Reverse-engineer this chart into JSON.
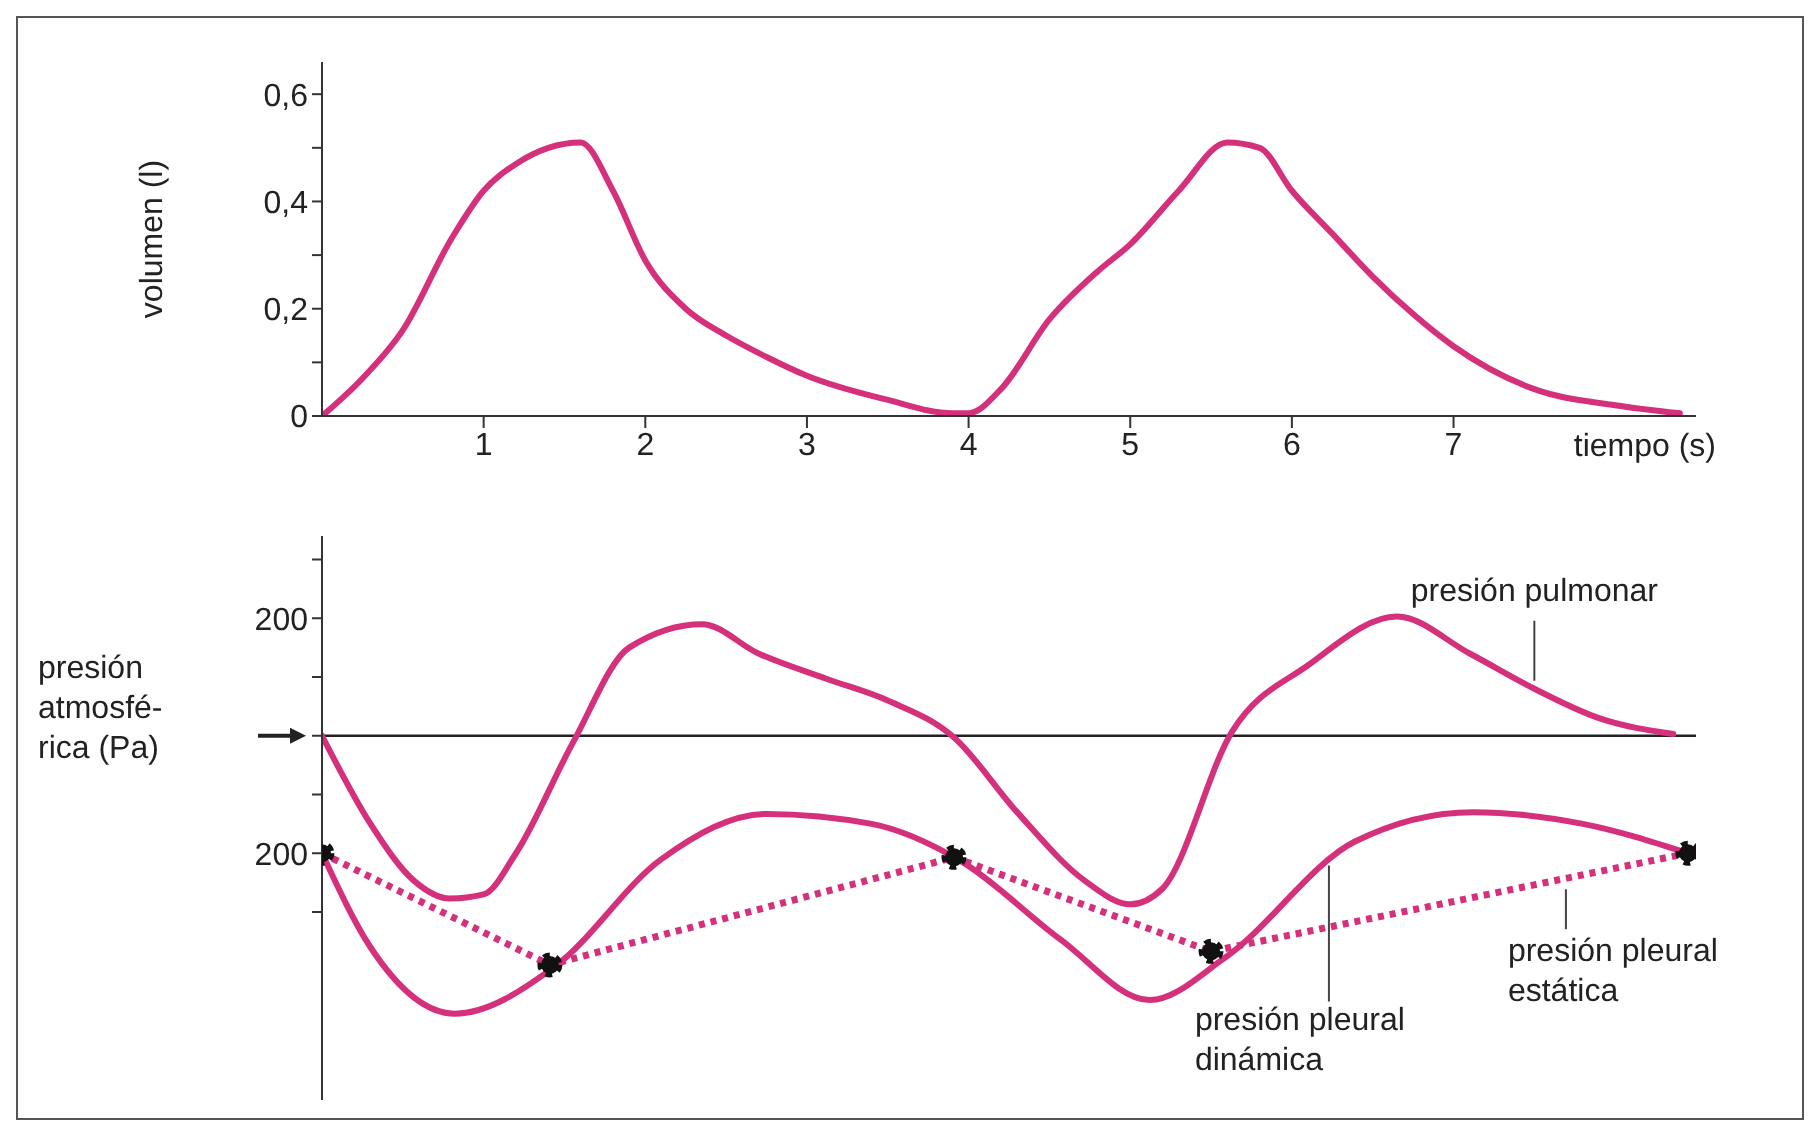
{
  "chart_data": [
    {
      "type": "line",
      "xlabel": "tiempo (s)",
      "ylabel": "volumen (l)",
      "xlim": [
        0,
        8.5
      ],
      "xticks": [
        1,
        2,
        3,
        4,
        5,
        6,
        7
      ],
      "ylim": [
        0,
        0.66
      ],
      "yticks": [
        0,
        {
          "value": 0.1,
          "label": null
        },
        {
          "value": 0.2,
          "label": "0,2"
        },
        {
          "value": 0.3,
          "label": null
        },
        {
          "value": 0.4,
          "label": "0,4"
        },
        {
          "value": 0.5,
          "label": null
        },
        {
          "value": 0.6,
          "label": "0,6"
        }
      ],
      "marker": "none",
      "line_style": "solid",
      "series": [
        {
          "color": "#d5307c",
          "x": [
            0,
            0.25,
            0.5,
            0.8,
            1,
            1.2,
            1.4,
            1.6,
            1.8,
            2,
            2.25,
            2.5,
            2.75,
            3,
            3.5,
            3.9,
            4,
            4.2,
            4.5,
            4.8,
            5,
            5.3,
            5.6,
            5.8,
            6,
            6.25,
            6.5,
            6.75,
            7,
            7.5,
            8,
            8.4
          ],
          "values": [
            0,
            0.07,
            0.16,
            0.33,
            0.42,
            0.47,
            0.5,
            0.51,
            0.42,
            0.29,
            0.2,
            0.15,
            0.11,
            0.075,
            0.03,
            0.005,
            0.005,
            0.05,
            0.18,
            0.27,
            0.32,
            0.42,
            0.51,
            0.5,
            0.42,
            0.34,
            0.26,
            0.19,
            0.13,
            0.05,
            0.02,
            0.005
          ]
        }
      ]
    },
    {
      "type": "line",
      "ylabel": "presión\natmosfé-\nrica (Pa)",
      "xlim": [
        0,
        8.5
      ],
      "ylim": [
        -620,
        340
      ],
      "yticks": [
        {
          "value": 300,
          "label": null
        },
        200,
        {
          "value": 100,
          "label": null
        },
        {
          "value": 0,
          "label": null
        },
        {
          "value": -100,
          "label": null
        },
        {
          "value": -200,
          "label": "200"
        },
        {
          "value": -300,
          "label": null
        }
      ],
      "tick_labels": "y",
      "marker": "none",
      "line_style": "solid",
      "ref_lines": [
        {
          "axis": "y",
          "value": 0,
          "color": "#222222"
        }
      ],
      "series": [
        {
          "name": "presión pulmonar",
          "color": "#d5307c",
          "x": [
            0,
            0.3,
            0.57,
            0.79,
            1.0,
            1.2,
            1.55,
            1.9,
            2.35,
            2.7,
            3.12,
            3.5,
            3.91,
            4.3,
            4.72,
            5.0,
            5.2,
            5.63,
            6.1,
            6.65,
            7.1,
            7.5,
            7.9,
            8.36
          ],
          "values": [
            0,
            -150,
            -247,
            -277,
            -270,
            -200,
            -13,
            150,
            190,
            140,
            97,
            60,
            -3,
            -130,
            -247,
            -287,
            -260,
            7,
            120,
            203,
            140,
            80,
            30,
            3
          ]
        },
        {
          "name": "presión pleural dinámica",
          "color": "#d5307c",
          "x": [
            0,
            0.3,
            0.82,
            1.44,
            2.1,
            2.75,
            3.4,
            3.95,
            4.57,
            5.12,
            5.59,
            6.39,
            7.12,
            7.8,
            8.45
          ],
          "values": [
            -200,
            -360,
            -473,
            -393,
            -210,
            -133,
            -150,
            -213,
            -347,
            -450,
            -377,
            -180,
            -130,
            -150,
            -200
          ]
        },
        {
          "name": "presión pleural estática",
          "color": "#d5307c",
          "marker": "circle",
          "line_style": "dotted",
          "x": [
            0,
            1.41,
            3.91,
            5.5,
            8.45
          ],
          "values": [
            -200,
            -390,
            -207,
            -367,
            -200
          ]
        }
      ]
    }
  ]
}
